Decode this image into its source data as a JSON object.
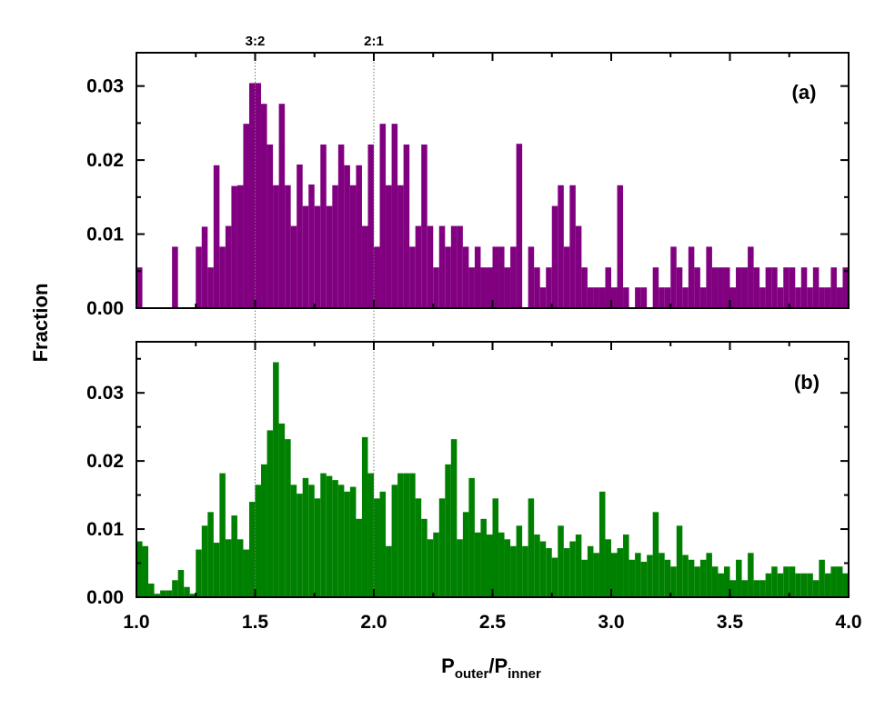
{
  "chart_data": {
    "type": "bar",
    "ylabel": "Fraction",
    "xlabel": {
      "main_1": "P",
      "sub_1": "outer",
      "main_2": "/P",
      "sub_2": "inner"
    },
    "xlim": [
      1.0,
      4.0
    ],
    "xticks": [
      "1.0",
      "1.5",
      "2.0",
      "2.5",
      "3.0",
      "3.5",
      "4.0"
    ],
    "bin_width": 0.025,
    "resonances": [
      {
        "label": "3:2",
        "x": 1.5
      },
      {
        "label": "2:1",
        "x": 2.0
      }
    ],
    "panels": [
      {
        "label": "(a)",
        "color": "#800080",
        "ylim": [
          0,
          0.0345
        ],
        "yticks": [
          "0.00",
          "0.01",
          "0.02",
          "0.03"
        ],
        "x_start": 1.0,
        "values": [
          0.0055,
          0,
          0,
          0,
          0,
          0,
          0.0083,
          0,
          0,
          0,
          0.0083,
          0.011,
          0.0055,
          0.0193,
          0.0083,
          0.0111,
          0.0165,
          0.0166,
          0.0249,
          0.0304,
          0.0304,
          0.0276,
          0.0221,
          0.0166,
          0.0276,
          0.0166,
          0.0111,
          0.0194,
          0.0138,
          0.0167,
          0.0138,
          0.0221,
          0.0138,
          0.0166,
          0.0221,
          0.0193,
          0.0166,
          0.0193,
          0.0111,
          0.0221,
          0.0083,
          0.0249,
          0.0166,
          0.0249,
          0.0166,
          0.0221,
          0.0083,
          0.0111,
          0.0221,
          0.0111,
          0.0055,
          0.0111,
          0.0083,
          0.0111,
          0.0111,
          0.0083,
          0.0055,
          0.0083,
          0.0055,
          0.0055,
          0.0083,
          0.0083,
          0.0055,
          0.0083,
          0.0222,
          0,
          0.0083,
          0.0055,
          0.0028,
          0.0055,
          0.0138,
          0.0166,
          0.0083,
          0.0166,
          0.0111,
          0.0055,
          0.0028,
          0.0028,
          0.0028,
          0.0055,
          0.0028,
          0.0166,
          0.0028,
          0,
          0.0028,
          0.0028,
          0,
          0.0055,
          0.0028,
          0.0028,
          0.0083,
          0.0055,
          0.0028,
          0.0083,
          0.0055,
          0.0028,
          0.0083,
          0.0055,
          0.0055,
          0.0055,
          0.0028,
          0.0055,
          0.0055,
          0.0083,
          0.0055,
          0.0028,
          0.0055,
          0.0055,
          0.0028,
          0.0055,
          0.0055,
          0.0028,
          0.0055,
          0.0028,
          0.0055,
          0.0028,
          0.0028,
          0.0055,
          0.0028,
          0.0055,
          0.0028,
          0.0028,
          0.0028,
          0.0028,
          0.0028,
          0.0055,
          0.0028,
          0,
          0.0028,
          0.0028,
          0.0028,
          0.0055,
          0.0028,
          0.0028,
          0.0055,
          0.0028,
          0.0028,
          0.0055,
          0.0028,
          0.0028,
          0.0028,
          0.0055,
          0.0028,
          0.0028,
          0.0028,
          0.0111,
          0.0028,
          0.0055
        ]
      },
      {
        "label": "(b)",
        "color": "#008000",
        "ylim": [
          0,
          0.0375
        ],
        "yticks": [
          "0.00",
          "0.01",
          "0.02",
          "0.03"
        ],
        "x_start": 1.0,
        "values": [
          0.0082,
          0.0075,
          0.002,
          0.0005,
          0.001,
          0.001,
          0.0025,
          0.004,
          0.0015,
          0.0005,
          0.007,
          0.0105,
          0.0125,
          0.008,
          0.0182,
          0.0085,
          0.012,
          0.0085,
          0.007,
          0.014,
          0.0165,
          0.0195,
          0.0245,
          0.0345,
          0.0255,
          0.0232,
          0.0165,
          0.0152,
          0.0175,
          0.0165,
          0.0145,
          0.0182,
          0.0178,
          0.0172,
          0.0165,
          0.0155,
          0.0162,
          0.0115,
          0.0235,
          0.0182,
          0.0145,
          0.0155,
          0.0075,
          0.0165,
          0.0182,
          0.0182,
          0.0182,
          0.0145,
          0.0115,
          0.0085,
          0.0095,
          0.0145,
          0.0195,
          0.0232,
          0.0085,
          0.0125,
          0.0175,
          0.0095,
          0.0115,
          0.0092,
          0.0145,
          0.0095,
          0.0085,
          0.0075,
          0.0105,
          0.0075,
          0.0145,
          0.0092,
          0.0082,
          0.0072,
          0.0058,
          0.0105,
          0.0072,
          0.0082,
          0.0092,
          0.0055,
          0.0075,
          0.0065,
          0.0155,
          0.0085,
          0.0065,
          0.0072,
          0.0092,
          0.0055,
          0.0065,
          0.0052,
          0.0062,
          0.0125,
          0.0065,
          0.0055,
          0.0045,
          0.0105,
          0.0062,
          0.0055,
          0.0045,
          0.0055,
          0.0065,
          0.0045,
          0.0035,
          0.0045,
          0.0025,
          0.0055,
          0.0025,
          0.0065,
          0.0025,
          0.0025,
          0.0035,
          0.0045,
          0.0035,
          0.0045,
          0.0045,
          0.0035,
          0.0035,
          0.0035,
          0.0025,
          0.0055,
          0.0035,
          0.0045,
          0.0045,
          0.0035,
          0.0045,
          0.0035,
          0.0035,
          0.0025,
          0.0025,
          0.0035,
          0.0025,
          0.0045,
          0.0045,
          0.0035,
          0.0035,
          0.0025,
          0.0025,
          0.0055,
          0.0035,
          0.0025,
          0.0035,
          0.0025,
          0.0035,
          0.0025,
          0.0045,
          0.0025,
          0.0025,
          0.0025,
          0.0105,
          0.0035,
          0.0055
        ]
      }
    ]
  }
}
